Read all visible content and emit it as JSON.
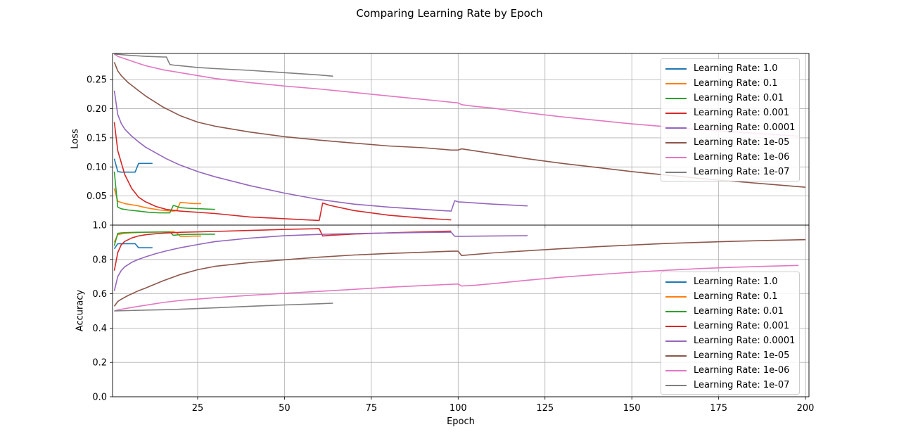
{
  "title": "Comparing Learning Rate by Epoch",
  "colors": [
    "#1f77b4",
    "#ff7f0e",
    "#2ca02c",
    "#d62728",
    "#9467bd",
    "#8c564b",
    "#e377c2",
    "#7f7f7f"
  ],
  "chart_data": [
    {
      "type": "line",
      "panel": "top",
      "xlabel": "",
      "ylabel": "Loss",
      "xlim": [
        0.5,
        201
      ],
      "ylim": [
        0.0,
        0.295
      ],
      "yticks": [
        0.05,
        0.1,
        0.15,
        0.2,
        0.25
      ],
      "ytick_labels": [
        "0.05",
        "0.10",
        "0.15",
        "0.20",
        "0.25"
      ],
      "xticks": [
        25,
        50,
        75,
        100,
        125,
        150,
        175,
        200
      ],
      "grid": true,
      "legend_position": "upper right",
      "series": [
        {
          "name": "Learning Rate: 1.0",
          "x": [
            1,
            2,
            3,
            4,
            5,
            6,
            7,
            8,
            9,
            10,
            11,
            12
          ],
          "y": [
            0.114,
            0.092,
            0.091,
            0.091,
            0.091,
            0.091,
            0.091,
            0.106,
            0.106,
            0.106,
            0.106,
            0.106
          ]
        },
        {
          "name": "Learning Rate: 0.1",
          "x": [
            1,
            2,
            4,
            6,
            8,
            10,
            12,
            14,
            16,
            18,
            19,
            20,
            22,
            24,
            26
          ],
          "y": [
            0.063,
            0.041,
            0.037,
            0.035,
            0.033,
            0.03,
            0.028,
            0.026,
            0.025,
            0.024,
            0.025,
            0.039,
            0.038,
            0.037,
            0.037
          ]
        },
        {
          "name": "Learning Rate: 0.01",
          "x": [
            1,
            2,
            3,
            5,
            8,
            11,
            14,
            17,
            18,
            20,
            22,
            26,
            30
          ],
          "y": [
            0.092,
            0.031,
            0.028,
            0.026,
            0.024,
            0.022,
            0.021,
            0.021,
            0.034,
            0.03,
            0.029,
            0.028,
            0.027
          ]
        },
        {
          "name": "Learning Rate: 0.001",
          "x": [
            1,
            2,
            4,
            6,
            8,
            10,
            13,
            16,
            20,
            30,
            40,
            50,
            60,
            61,
            63,
            70,
            80,
            90,
            98
          ],
          "y": [
            0.177,
            0.128,
            0.087,
            0.063,
            0.048,
            0.04,
            0.032,
            0.027,
            0.024,
            0.02,
            0.014,
            0.011,
            0.008,
            0.038,
            0.034,
            0.025,
            0.017,
            0.012,
            0.009
          ]
        },
        {
          "name": "Learning Rate: 0.0001",
          "x": [
            1,
            2,
            3,
            4,
            6,
            8,
            10,
            13,
            16,
            20,
            25,
            30,
            40,
            50,
            60,
            70,
            80,
            90,
            98,
            99,
            100,
            110,
            120
          ],
          "y": [
            0.231,
            0.19,
            0.175,
            0.165,
            0.153,
            0.143,
            0.134,
            0.124,
            0.114,
            0.103,
            0.092,
            0.083,
            0.068,
            0.055,
            0.044,
            0.036,
            0.031,
            0.027,
            0.024,
            0.042,
            0.04,
            0.036,
            0.033
          ]
        },
        {
          "name": "Learning Rate: 1e-05",
          "x": [
            1,
            2,
            3,
            5,
            8,
            10,
            15,
            20,
            25,
            30,
            40,
            50,
            60,
            70,
            80,
            90,
            98,
            100,
            101,
            110,
            120,
            130,
            140,
            150,
            160,
            170,
            180,
            190,
            200
          ],
          "y": [
            0.28,
            0.265,
            0.257,
            0.245,
            0.231,
            0.222,
            0.203,
            0.188,
            0.177,
            0.17,
            0.16,
            0.152,
            0.146,
            0.141,
            0.136,
            0.133,
            0.129,
            0.129,
            0.131,
            0.123,
            0.114,
            0.106,
            0.099,
            0.092,
            0.086,
            0.08,
            0.075,
            0.07,
            0.065
          ]
        },
        {
          "name": "Learning Rate: 1e-06",
          "x": [
            1,
            2,
            3,
            5,
            8,
            10,
            15,
            20,
            30,
            40,
            50,
            60,
            70,
            80,
            90,
            100,
            101,
            105,
            110,
            120,
            130,
            140,
            150,
            160,
            170,
            180,
            190,
            198
          ],
          "y": [
            0.294,
            0.29,
            0.288,
            0.284,
            0.278,
            0.274,
            0.267,
            0.262,
            0.252,
            0.245,
            0.239,
            0.234,
            0.228,
            0.222,
            0.216,
            0.21,
            0.207,
            0.204,
            0.201,
            0.193,
            0.186,
            0.18,
            0.174,
            0.169,
            0.164,
            0.16,
            0.156,
            0.153
          ]
        },
        {
          "name": "Learning Rate: 1e-07",
          "x": [
            1,
            5,
            10,
            15,
            16,
            17,
            18,
            20,
            25,
            30,
            40,
            50,
            60,
            64
          ],
          "y": [
            0.294,
            0.292,
            0.29,
            0.289,
            0.289,
            0.276,
            0.275,
            0.274,
            0.271,
            0.269,
            0.266,
            0.262,
            0.258,
            0.256
          ]
        }
      ]
    },
    {
      "type": "line",
      "panel": "bottom",
      "xlabel": "Epoch",
      "ylabel": "Accuracy",
      "xlim": [
        0.5,
        201
      ],
      "ylim": [
        0.0,
        1.0
      ],
      "yticks": [
        0.0,
        0.2,
        0.4,
        0.6,
        0.8,
        1.0
      ],
      "ytick_labels": [
        "0.0",
        "0.2",
        "0.4",
        "0.6",
        "0.8",
        "1.0"
      ],
      "xticks": [
        25,
        50,
        75,
        100,
        125,
        150,
        175,
        200
      ],
      "xtick_labels": [
        "25",
        "50",
        "75",
        "100",
        "125",
        "150",
        "175",
        "200"
      ],
      "grid": true,
      "legend_position": "lower right",
      "series": [
        {
          "name": "Learning Rate: 1.0",
          "x": [
            1,
            2,
            3,
            4,
            5,
            6,
            7,
            8,
            9,
            10,
            11,
            12
          ],
          "y": [
            0.862,
            0.892,
            0.892,
            0.892,
            0.892,
            0.892,
            0.892,
            0.868,
            0.868,
            0.868,
            0.868,
            0.868
          ]
        },
        {
          "name": "Learning Rate: 0.1",
          "x": [
            1,
            2,
            4,
            6,
            8,
            10,
            12,
            14,
            16,
            18,
            19,
            20,
            22,
            24,
            26
          ],
          "y": [
            0.9,
            0.945,
            0.952,
            0.955,
            0.957,
            0.958,
            0.959,
            0.96,
            0.961,
            0.962,
            0.955,
            0.935,
            0.935,
            0.936,
            0.936
          ]
        },
        {
          "name": "Learning Rate: 0.01",
          "x": [
            1,
            2,
            3,
            5,
            8,
            11,
            14,
            17,
            18,
            20,
            22,
            26,
            30
          ],
          "y": [
            0.88,
            0.952,
            0.955,
            0.957,
            0.958,
            0.959,
            0.96,
            0.96,
            0.94,
            0.945,
            0.946,
            0.947,
            0.947
          ]
        },
        {
          "name": "Learning Rate: 0.001",
          "x": [
            1,
            2,
            3,
            4,
            6,
            8,
            10,
            13,
            16,
            20,
            30,
            40,
            50,
            60,
            61,
            63,
            70,
            80,
            90,
            98
          ],
          "y": [
            0.735,
            0.84,
            0.885,
            0.905,
            0.925,
            0.937,
            0.944,
            0.95,
            0.954,
            0.958,
            0.963,
            0.969,
            0.975,
            0.979,
            0.937,
            0.94,
            0.948,
            0.955,
            0.961,
            0.965
          ]
        },
        {
          "name": "Learning Rate: 0.0001",
          "x": [
            1,
            2,
            3,
            4,
            6,
            8,
            10,
            13,
            16,
            20,
            25,
            30,
            40,
            50,
            60,
            70,
            80,
            90,
            98,
            99,
            100,
            110,
            120
          ],
          "y": [
            0.617,
            0.7,
            0.735,
            0.757,
            0.783,
            0.801,
            0.815,
            0.834,
            0.85,
            0.868,
            0.887,
            0.904,
            0.924,
            0.938,
            0.946,
            0.951,
            0.954,
            0.957,
            0.959,
            0.935,
            0.935,
            0.937,
            0.938
          ]
        },
        {
          "name": "Learning Rate: 1e-05",
          "x": [
            1,
            2,
            3,
            5,
            8,
            10,
            15,
            20,
            25,
            30,
            40,
            50,
            60,
            70,
            80,
            90,
            98,
            100,
            101,
            110,
            120,
            130,
            140,
            150,
            160,
            170,
            180,
            190,
            200
          ],
          "y": [
            0.527,
            0.555,
            0.568,
            0.59,
            0.618,
            0.633,
            0.675,
            0.712,
            0.74,
            0.76,
            0.782,
            0.798,
            0.813,
            0.826,
            0.835,
            0.842,
            0.848,
            0.848,
            0.823,
            0.838,
            0.851,
            0.863,
            0.874,
            0.884,
            0.893,
            0.9,
            0.906,
            0.911,
            0.915
          ]
        },
        {
          "name": "Learning Rate: 1e-06",
          "x": [
            1,
            2,
            3,
            5,
            8,
            10,
            15,
            20,
            30,
            40,
            50,
            60,
            70,
            80,
            90,
            100,
            101,
            105,
            110,
            120,
            130,
            140,
            150,
            160,
            170,
            180,
            190,
            198
          ],
          "y": [
            0.499,
            0.506,
            0.51,
            0.517,
            0.527,
            0.533,
            0.549,
            0.561,
            0.577,
            0.591,
            0.603,
            0.614,
            0.626,
            0.638,
            0.648,
            0.657,
            0.645,
            0.65,
            0.659,
            0.679,
            0.697,
            0.712,
            0.725,
            0.737,
            0.747,
            0.755,
            0.761,
            0.765
          ]
        },
        {
          "name": "Learning Rate: 1e-07",
          "x": [
            1,
            5,
            10,
            15,
            20,
            30,
            40,
            50,
            60,
            64
          ],
          "y": [
            0.5,
            0.502,
            0.505,
            0.507,
            0.51,
            0.518,
            0.527,
            0.535,
            0.542,
            0.545
          ]
        }
      ]
    }
  ]
}
